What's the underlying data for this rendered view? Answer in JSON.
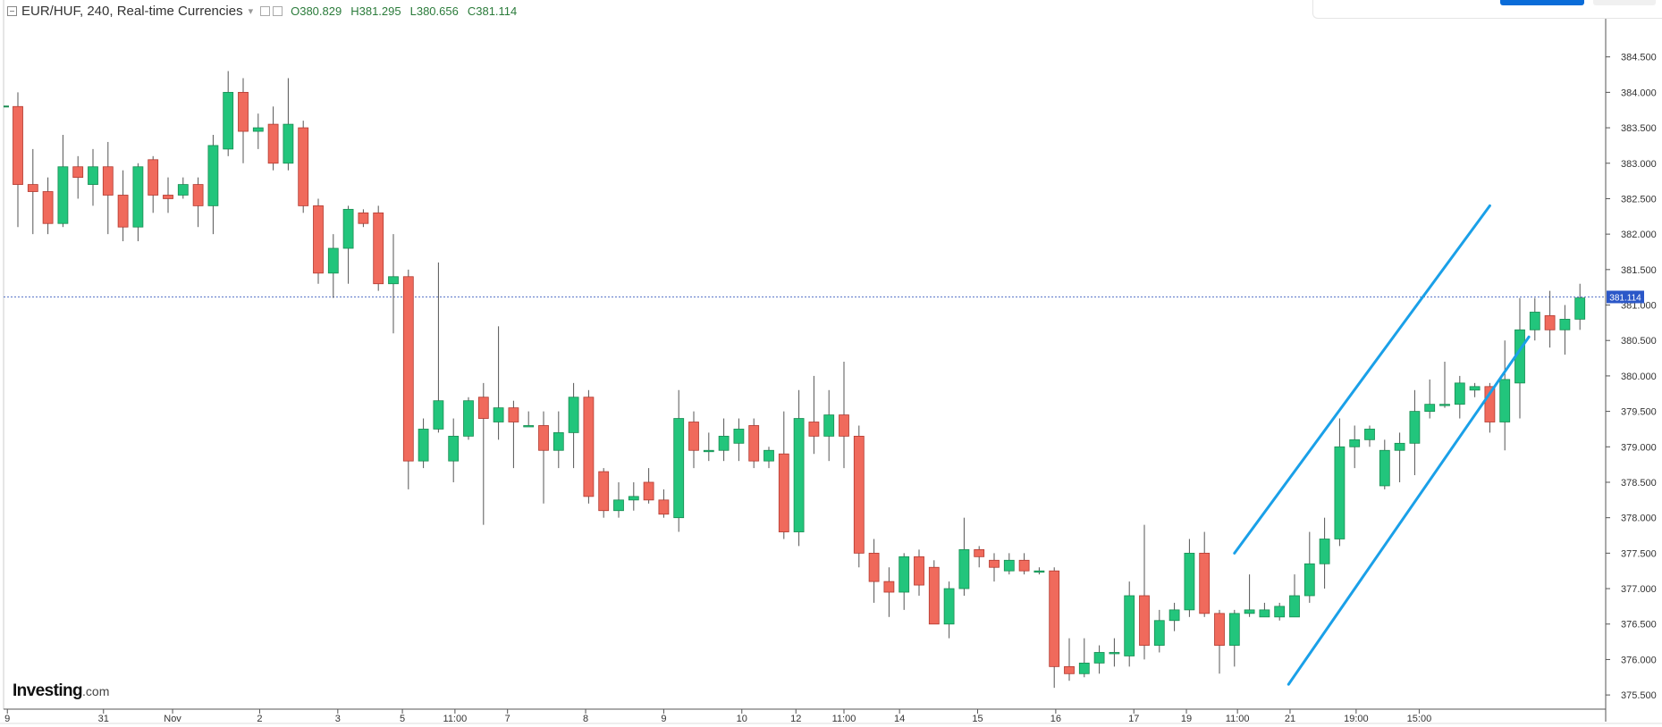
{
  "header": {
    "symbol": "EUR/HUF",
    "interval": "240",
    "source": "Real-time Currencies",
    "title": "EUR/HUF, 240, Real-time Currencies",
    "open": "O380.829",
    "high": "H381.295",
    "low": "L380.656",
    "close": "C381.114"
  },
  "price_tag": "381.114",
  "logo": {
    "main": "Investing",
    "suffix": ".com"
  },
  "colors": {
    "up": "#22c57c",
    "down": "#f06a5c",
    "up_border": "#1a8c52",
    "down_border": "#b23a30",
    "channel": "#1aa0e8",
    "price_line": "#3355bb",
    "axis_text": "#333333"
  },
  "chart_data": {
    "type": "candlestick",
    "title": "EUR/HUF, 240, Real-time Currencies",
    "ylim": [
      375.3,
      385.0
    ],
    "y_ticks": [
      375.5,
      376.0,
      376.5,
      377.0,
      377.5,
      378.0,
      378.5,
      379.0,
      379.5,
      380.0,
      380.5,
      381.0,
      381.5,
      382.0,
      382.5,
      383.0,
      383.5,
      384.0,
      384.5
    ],
    "y_tick_labels": [
      "375.500",
      "376.000",
      "376.500",
      "377.000",
      "377.500",
      "378.000",
      "378.500",
      "379.000",
      "379.500",
      "380.000",
      "380.500",
      "381.000",
      "381.500",
      "382.000",
      "382.500",
      "383.000",
      "383.500",
      "384.000",
      "384.500"
    ],
    "x_ticks": [
      {
        "label": "9",
        "index": -0.7
      },
      {
        "label": "31",
        "index": 5.7
      },
      {
        "label": "Nov",
        "index": 10.3
      },
      {
        "label": "2",
        "index": 16.1
      },
      {
        "label": "3",
        "index": 21.3
      },
      {
        "label": "5",
        "index": 25.6
      },
      {
        "label": "11:00",
        "index": 29.1
      },
      {
        "label": "7",
        "index": 32.6
      },
      {
        "label": "8",
        "index": 37.8
      },
      {
        "label": "9",
        "index": 43.0
      },
      {
        "label": "10",
        "index": 48.2
      },
      {
        "label": "12",
        "index": 51.8
      },
      {
        "label": "11:00",
        "index": 55.0
      },
      {
        "label": "14",
        "index": 58.7
      },
      {
        "label": "15",
        "index": 63.9
      },
      {
        "label": "16",
        "index": 69.1
      },
      {
        "label": "17",
        "index": 74.3
      },
      {
        "label": "19",
        "index": 77.8
      },
      {
        "label": "11:00",
        "index": 81.2
      },
      {
        "label": "21",
        "index": 84.7
      },
      {
        "label": "19:00",
        "index": 89.1
      },
      {
        "label": "15:00",
        "index": 93.3
      }
    ],
    "last_price": 381.114,
    "ohlc": [
      [
        383.8,
        384.0,
        382.1,
        382.7
      ],
      [
        382.7,
        383.2,
        382.0,
        382.6
      ],
      [
        382.6,
        382.8,
        382.0,
        382.15
      ],
      [
        382.15,
        383.4,
        382.1,
        382.95
      ],
      [
        382.95,
        383.1,
        382.5,
        382.8
      ],
      [
        382.7,
        383.2,
        382.4,
        382.95
      ],
      [
        382.95,
        383.3,
        382.0,
        382.55
      ],
      [
        382.55,
        382.9,
        381.9,
        382.1
      ],
      [
        382.1,
        383.0,
        381.9,
        382.95
      ],
      [
        383.05,
        383.1,
        382.3,
        382.55
      ],
      [
        382.55,
        382.8,
        382.3,
        382.5
      ],
      [
        382.55,
        382.8,
        382.5,
        382.7
      ],
      [
        382.7,
        382.8,
        382.1,
        382.4
      ],
      [
        382.4,
        383.4,
        382.0,
        383.25
      ],
      [
        383.2,
        384.3,
        383.1,
        384.0
      ],
      [
        384.0,
        384.2,
        383.0,
        383.45
      ],
      [
        383.45,
        383.7,
        383.2,
        383.5
      ],
      [
        383.55,
        383.8,
        382.9,
        383.0
      ],
      [
        383.0,
        384.2,
        382.9,
        383.55
      ],
      [
        383.5,
        383.6,
        382.3,
        382.4
      ],
      [
        382.4,
        382.5,
        381.3,
        381.45
      ],
      [
        381.45,
        382.0,
        381.1,
        381.8
      ],
      [
        381.8,
        382.4,
        381.3,
        382.35
      ],
      [
        382.3,
        382.35,
        382.1,
        382.15
      ],
      [
        382.3,
        382.4,
        381.2,
        381.3
      ],
      [
        381.3,
        382.0,
        380.6,
        381.4
      ],
      [
        381.4,
        381.5,
        378.4,
        378.8
      ],
      [
        378.8,
        379.4,
        378.7,
        379.25
      ],
      [
        379.25,
        381.6,
        379.2,
        379.65
      ],
      [
        378.8,
        379.4,
        378.5,
        379.15
      ],
      [
        379.15,
        379.7,
        379.1,
        379.65
      ],
      [
        379.7,
        379.9,
        377.9,
        379.4
      ],
      [
        379.35,
        380.7,
        379.1,
        379.55
      ],
      [
        379.55,
        379.65,
        378.7,
        379.35
      ],
      [
        379.3,
        379.5,
        379.3,
        379.3
      ],
      [
        379.3,
        379.5,
        378.2,
        378.95
      ],
      [
        378.95,
        379.5,
        378.7,
        379.2
      ],
      [
        379.2,
        379.9,
        378.7,
        379.7
      ],
      [
        379.7,
        379.8,
        378.2,
        378.3
      ],
      [
        378.65,
        378.7,
        378.0,
        378.1
      ],
      [
        378.1,
        378.5,
        378.0,
        378.25
      ],
      [
        378.25,
        378.5,
        378.1,
        378.3
      ],
      [
        378.5,
        378.7,
        378.2,
        378.25
      ],
      [
        378.25,
        378.4,
        378.0,
        378.05
      ],
      [
        378.0,
        379.8,
        377.8,
        379.4
      ],
      [
        379.35,
        379.5,
        378.7,
        378.95
      ],
      [
        378.95,
        379.2,
        378.8,
        378.95
      ],
      [
        378.95,
        379.4,
        378.8,
        379.15
      ],
      [
        379.05,
        379.4,
        378.8,
        379.25
      ],
      [
        379.3,
        379.4,
        378.7,
        378.8
      ],
      [
        378.8,
        379.0,
        378.7,
        378.95
      ],
      [
        378.9,
        379.5,
        377.7,
        377.8
      ],
      [
        377.8,
        379.8,
        377.6,
        379.4
      ],
      [
        379.35,
        380.0,
        378.9,
        379.15
      ],
      [
        379.15,
        379.8,
        378.8,
        379.45
      ],
      [
        379.45,
        380.2,
        378.7,
        379.15
      ],
      [
        379.15,
        379.3,
        377.3,
        377.5
      ],
      [
        377.5,
        377.7,
        376.8,
        377.1
      ],
      [
        377.1,
        377.3,
        376.6,
        376.95
      ],
      [
        376.95,
        377.5,
        376.7,
        377.45
      ],
      [
        377.45,
        377.55,
        376.9,
        377.05
      ],
      [
        377.3,
        377.4,
        376.5,
        376.5
      ],
      [
        376.5,
        377.1,
        376.3,
        377.0
      ],
      [
        377.0,
        378.0,
        376.9,
        377.55
      ],
      [
        377.55,
        377.6,
        377.3,
        377.45
      ],
      [
        377.4,
        377.5,
        377.1,
        377.3
      ],
      [
        377.25,
        377.5,
        377.2,
        377.4
      ],
      [
        377.4,
        377.5,
        377.2,
        377.25
      ],
      [
        377.25,
        377.3,
        377.2,
        377.25
      ],
      [
        377.25,
        377.3,
        375.6,
        375.9
      ],
      [
        375.9,
        376.3,
        375.7,
        375.8
      ],
      [
        375.8,
        376.3,
        375.75,
        375.95
      ],
      [
        375.95,
        376.2,
        375.8,
        376.1
      ],
      [
        376.1,
        376.3,
        375.9,
        376.1
      ],
      [
        376.05,
        377.1,
        375.9,
        376.9
      ],
      [
        376.9,
        377.9,
        376.0,
        376.2
      ],
      [
        376.2,
        376.7,
        376.1,
        376.55
      ],
      [
        376.55,
        376.8,
        376.4,
        376.7
      ],
      [
        376.7,
        377.7,
        376.6,
        377.5
      ],
      [
        377.5,
        377.8,
        376.6,
        376.65
      ],
      [
        376.65,
        376.7,
        375.8,
        376.2
      ],
      [
        376.2,
        376.7,
        375.9,
        376.65
      ],
      [
        376.65,
        377.2,
        376.6,
        376.7
      ],
      [
        376.6,
        376.8,
        376.6,
        376.7
      ],
      [
        376.6,
        376.8,
        376.55,
        376.75
      ],
      [
        376.6,
        377.2,
        376.6,
        376.9
      ],
      [
        376.9,
        377.8,
        376.8,
        377.35
      ],
      [
        377.35,
        378.0,
        377.0,
        377.7
      ],
      [
        377.7,
        379.4,
        377.6,
        379.0
      ],
      [
        379.0,
        379.3,
        378.7,
        379.1
      ],
      [
        379.1,
        379.3,
        379.0,
        379.25
      ],
      [
        378.45,
        379.1,
        378.4,
        378.95
      ],
      [
        378.95,
        379.2,
        378.5,
        379.05
      ],
      [
        379.05,
        379.8,
        378.6,
        379.5
      ],
      [
        379.5,
        379.95,
        379.4,
        379.6
      ],
      [
        379.6,
        380.2,
        379.55,
        379.6
      ],
      [
        379.6,
        380.0,
        379.4,
        379.9
      ],
      [
        379.8,
        379.9,
        379.7,
        379.85
      ],
      [
        379.85,
        379.9,
        379.2,
        379.35
      ],
      [
        379.35,
        380.5,
        378.95,
        379.95
      ],
      [
        379.9,
        381.1,
        379.4,
        380.65
      ],
      [
        380.65,
        381.1,
        380.5,
        380.9
      ],
      [
        380.85,
        381.2,
        380.4,
        380.65
      ],
      [
        380.65,
        381.0,
        380.3,
        380.8
      ],
      [
        380.8,
        381.3,
        380.65,
        381.1
      ]
    ],
    "trend_lines": [
      {
        "name": "channel-upper",
        "start": [
          81.0,
          377.5
        ],
        "end": [
          98.0,
          382.4
        ]
      },
      {
        "name": "channel-lower",
        "start": [
          84.6,
          375.65
        ],
        "end": [
          100.6,
          380.55
        ]
      }
    ]
  }
}
